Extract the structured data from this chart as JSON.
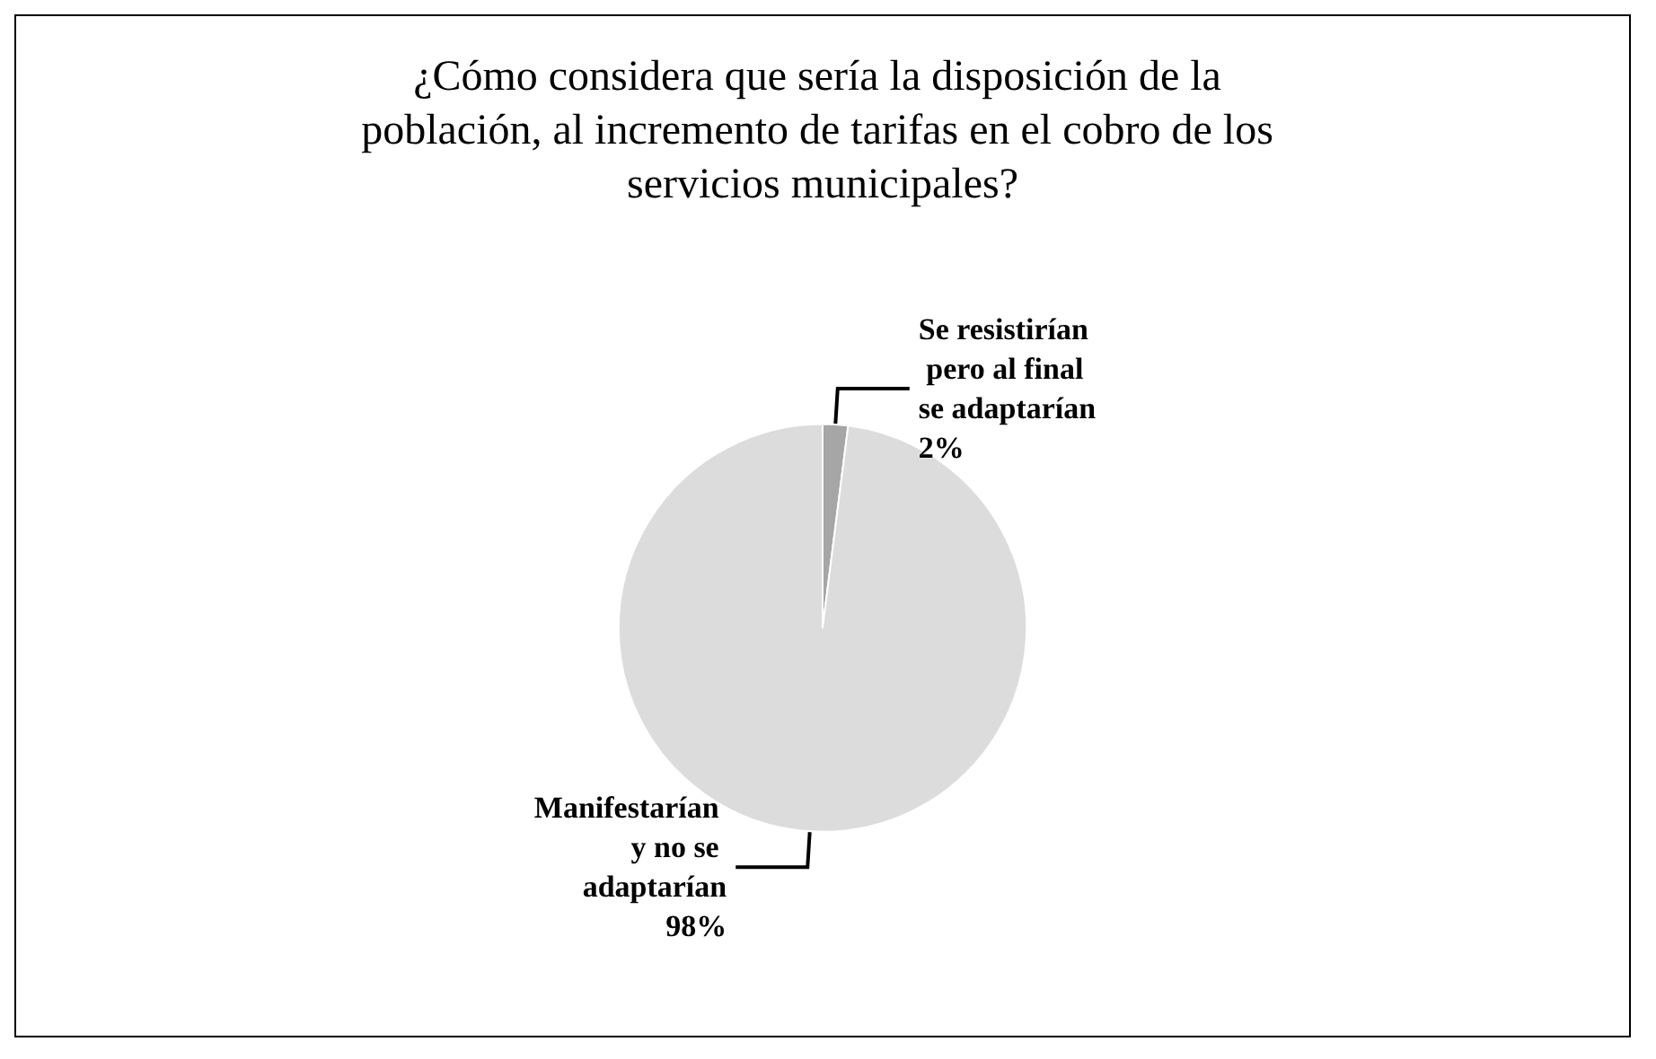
{
  "chart_data": {
    "type": "pie",
    "title": "¿Cómo considera que sería la disposición de la población, al incremento de tarifas en el cobro de los servicios municipales?",
    "categories": [
      "Se resistirían pero al final se adaptarían",
      "Manifestarían y no se adaptarían"
    ],
    "values": [
      2,
      98
    ],
    "colors": [
      "#a6a6a6",
      "#dcdcdc"
    ],
    "value_labels": [
      "2%",
      "98%"
    ]
  }
}
